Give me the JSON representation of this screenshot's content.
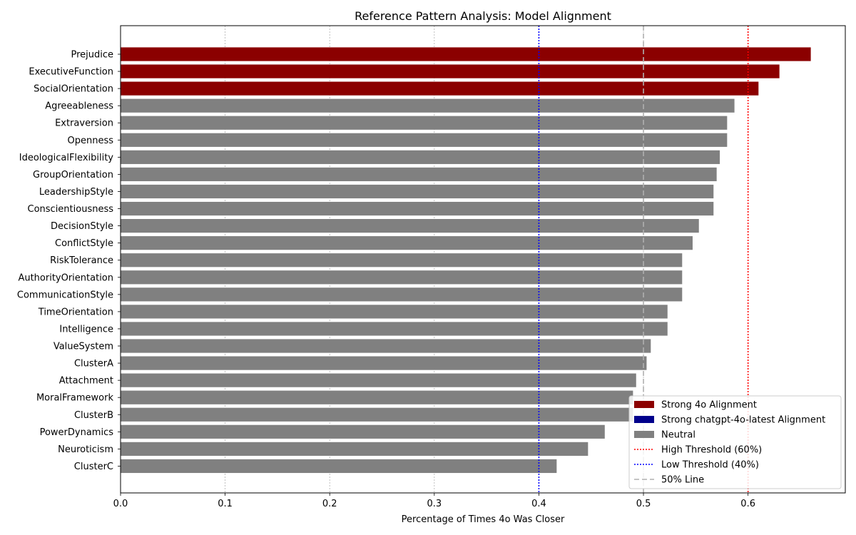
{
  "chart_data": {
    "type": "bar",
    "orientation": "horizontal",
    "title": "Reference Pattern Analysis: Model Alignment",
    "xlabel": "Percentage of Times 4o Was Closer",
    "ylabel": "",
    "xlim": [
      0,
      0.693
    ],
    "xticks": [
      0.0,
      0.1,
      0.2,
      0.3,
      0.4,
      0.5,
      0.6
    ],
    "xtick_labels": [
      "0.0",
      "0.1",
      "0.2",
      "0.3",
      "0.4",
      "0.5",
      "0.6"
    ],
    "grid": "vertical",
    "categories": [
      "Prejudice",
      "ExecutiveFunction",
      "SocialOrientation",
      "Agreeableness",
      "Extraversion",
      "Openness",
      "IdeologicalFlexibility",
      "GroupOrientation",
      "LeadershipStyle",
      "Conscientiousness",
      "DecisionStyle",
      "ConflictStyle",
      "RiskTolerance",
      "AuthorityOrientation",
      "CommunicationStyle",
      "TimeOrientation",
      "Intelligence",
      "ValueSystem",
      "ClusterA",
      "Attachment",
      "MoralFramework",
      "ClusterB",
      "PowerDynamics",
      "Neuroticism",
      "ClusterC"
    ],
    "values": [
      0.66,
      0.63,
      0.61,
      0.587,
      0.58,
      0.58,
      0.573,
      0.57,
      0.567,
      0.567,
      0.553,
      0.547,
      0.537,
      0.537,
      0.537,
      0.523,
      0.523,
      0.507,
      0.503,
      0.493,
      0.49,
      0.49,
      0.463,
      0.447,
      0.417
    ],
    "groups": [
      "strong_4o",
      "strong_4o",
      "strong_4o",
      "neutral",
      "neutral",
      "neutral",
      "neutral",
      "neutral",
      "neutral",
      "neutral",
      "neutral",
      "neutral",
      "neutral",
      "neutral",
      "neutral",
      "neutral",
      "neutral",
      "neutral",
      "neutral",
      "neutral",
      "neutral",
      "neutral",
      "neutral",
      "neutral",
      "neutral"
    ],
    "colors": {
      "strong_4o": "#8b0000",
      "strong_latest": "#00008b",
      "neutral": "#808080",
      "high_threshold": "#ff0000",
      "low_threshold": "#0000ff",
      "fifty_line": "#b0b0b0",
      "grid": "#b0b0b0"
    },
    "reference_lines": [
      {
        "value": 0.6,
        "style": "dotted",
        "color_key": "high_threshold"
      },
      {
        "value": 0.4,
        "style": "dotted",
        "color_key": "low_threshold"
      },
      {
        "value": 0.5,
        "style": "dashed",
        "color_key": "fifty_line"
      }
    ],
    "legend": {
      "placement": "lower-right",
      "entries": [
        {
          "label": "Strong 4o Alignment",
          "kind": "patch",
          "color_key": "strong_4o"
        },
        {
          "label": "Strong chatgpt-4o-latest Alignment",
          "kind": "patch",
          "color_key": "strong_latest"
        },
        {
          "label": "Neutral",
          "kind": "patch",
          "color_key": "neutral"
        },
        {
          "label": "High Threshold (60%)",
          "kind": "line",
          "style": "dotted",
          "color_key": "high_threshold"
        },
        {
          "label": "Low Threshold (40%)",
          "kind": "line",
          "style": "dotted",
          "color_key": "low_threshold"
        },
        {
          "label": "50% Line",
          "kind": "line",
          "style": "dashed",
          "color_key": "fifty_line"
        }
      ]
    }
  }
}
